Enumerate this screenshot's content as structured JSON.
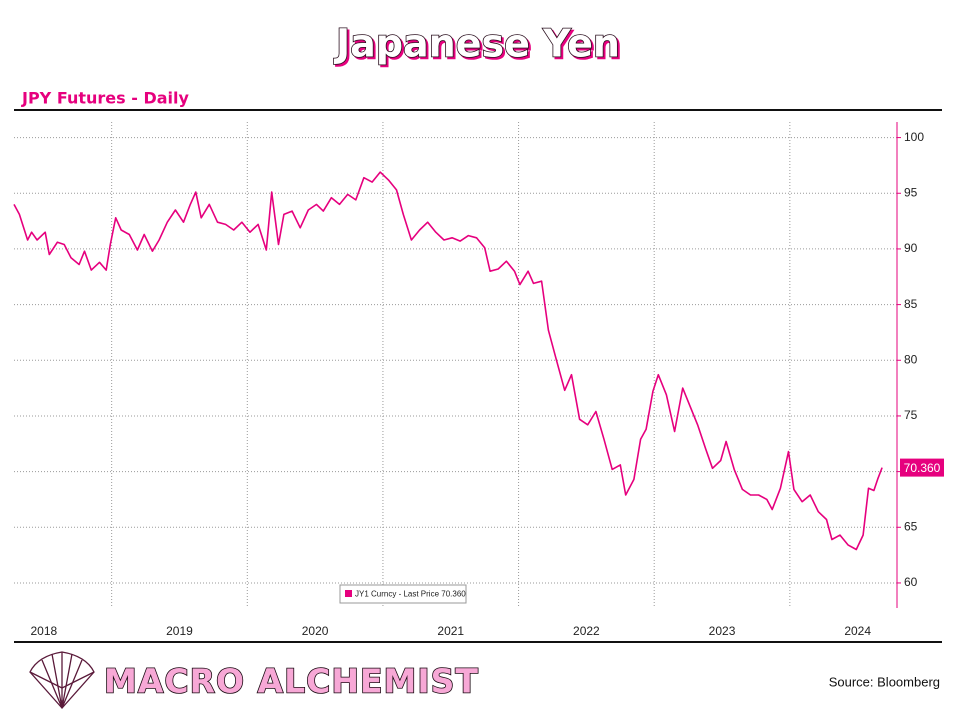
{
  "chart_data": {
    "type": "line",
    "title": "Japanese Yen",
    "subtitle": "JPY Futures - Daily",
    "x": [
      2018.28,
      2018.32,
      2018.38,
      2018.41,
      2018.45,
      2018.51,
      2018.54,
      2018.6,
      2018.65,
      2018.7,
      2018.76,
      2018.8,
      2018.85,
      2018.91,
      2018.96,
      2018.99,
      2019.03,
      2019.07,
      2019.13,
      2019.19,
      2019.24,
      2019.3,
      2019.35,
      2019.41,
      2019.47,
      2019.53,
      2019.58,
      2019.62,
      2019.66,
      2019.72,
      2019.78,
      2019.84,
      2019.9,
      2019.96,
      2020.02,
      2020.08,
      2020.14,
      2020.18,
      2020.23,
      2020.27,
      2020.33,
      2020.39,
      2020.45,
      2020.51,
      2020.56,
      2020.62,
      2020.68,
      2020.74,
      2020.8,
      2020.86,
      2020.92,
      2020.98,
      2021.04,
      2021.1,
      2021.15,
      2021.21,
      2021.27,
      2021.33,
      2021.39,
      2021.45,
      2021.51,
      2021.57,
      2021.63,
      2021.69,
      2021.75,
      2021.79,
      2021.85,
      2021.91,
      2021.97,
      2022.01,
      2022.07,
      2022.11,
      2022.17,
      2022.22,
      2022.28,
      2022.34,
      2022.39,
      2022.45,
      2022.51,
      2022.57,
      2022.63,
      2022.69,
      2022.75,
      2022.79,
      2022.85,
      2022.9,
      2022.94,
      2022.99,
      2023.03,
      2023.09,
      2023.15,
      2023.21,
      2023.27,
      2023.32,
      2023.38,
      2023.43,
      2023.49,
      2023.53,
      2023.59,
      2023.65,
      2023.71,
      2023.77,
      2023.83,
      2023.87,
      2023.93,
      2023.99,
      2024.03,
      2024.09,
      2024.15,
      2024.21,
      2024.27,
      2024.31,
      2024.37,
      2024.43,
      2024.49,
      2024.54,
      2024.58,
      2024.62,
      2024.65,
      2024.68
    ],
    "series": [
      {
        "name": "JY1 Curncy - Last Price 70.360",
        "color": "#e6007e",
        "values": [
          94.0,
          93.1,
          90.8,
          91.5,
          90.8,
          91.5,
          89.5,
          90.6,
          90.4,
          89.2,
          88.6,
          89.8,
          88.1,
          88.8,
          88.1,
          90.4,
          92.8,
          91.7,
          91.3,
          89.9,
          91.3,
          89.8,
          90.8,
          92.4,
          93.5,
          92.4,
          94.0,
          95.1,
          92.8,
          94.0,
          92.4,
          92.2,
          91.7,
          92.4,
          91.5,
          92.2,
          89.9,
          95.1,
          90.4,
          93.1,
          93.4,
          91.9,
          93.5,
          94.0,
          93.4,
          94.6,
          94.0,
          94.9,
          94.4,
          96.4,
          96.0,
          96.9,
          96.2,
          95.3,
          93.1,
          90.8,
          91.7,
          92.4,
          91.5,
          90.8,
          91.0,
          90.7,
          91.2,
          91.0,
          90.1,
          88.0,
          88.2,
          88.9,
          88.0,
          86.8,
          88.0,
          86.9,
          87.1,
          82.7,
          80.0,
          77.3,
          78.7,
          74.7,
          74.2,
          75.4,
          72.9,
          70.2,
          70.6,
          67.9,
          69.3,
          72.9,
          73.8,
          77.2,
          78.7,
          76.9,
          73.6,
          77.5,
          75.7,
          74.2,
          72.0,
          70.3,
          71.0,
          72.7,
          70.2,
          68.4,
          67.9,
          67.9,
          67.5,
          66.6,
          68.5,
          71.8,
          68.4,
          67.3,
          67.9,
          66.4,
          65.7,
          63.9,
          64.3,
          63.4,
          63.0,
          64.3,
          68.5,
          68.3,
          69.4,
          70.36
        ]
      }
    ],
    "last_price": {
      "value": 70.36,
      "label": "70.360"
    },
    "xlim": [
      2018.28,
      2024.79
    ],
    "xticks": [
      {
        "value": 2018.5,
        "label": "2018"
      },
      {
        "value": 2019.5,
        "label": "2019"
      },
      {
        "value": 2020.5,
        "label": "2020"
      },
      {
        "value": 2021.5,
        "label": "2021"
      },
      {
        "value": 2022.5,
        "label": "2022"
      },
      {
        "value": 2023.5,
        "label": "2023"
      },
      {
        "value": 2024.5,
        "label": "2024"
      }
    ],
    "xgrid": [
      2019,
      2020,
      2021,
      2022,
      2023,
      2024
    ],
    "ylim": [
      57.75,
      101.4
    ],
    "yticks": [
      60,
      65,
      70,
      75,
      80,
      85,
      90,
      95,
      100
    ],
    "grid": true
  },
  "footer": {
    "brand": "MACRO ALCHEMIST",
    "source": "Source: Bloomberg"
  }
}
